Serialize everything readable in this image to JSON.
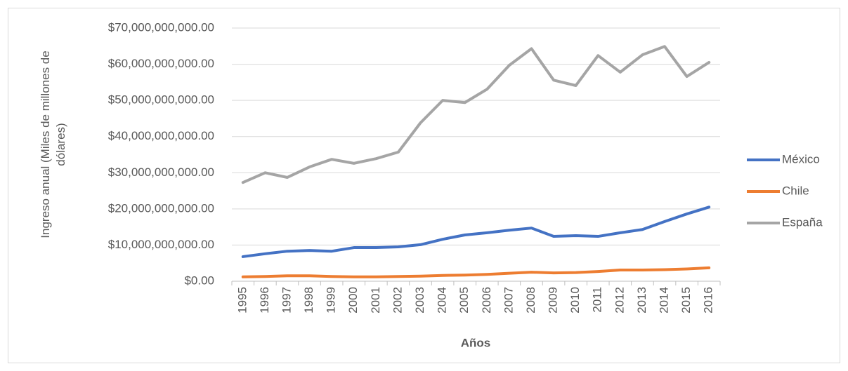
{
  "chart_data": {
    "type": "line",
    "x_label": "Años",
    "y_label": "Ingreso anual (Miles de millones de dólares)",
    "categories": [
      "1995",
      "1996",
      "1997",
      "1998",
      "1999",
      "2000",
      "2001",
      "2002",
      "2003",
      "2004",
      "2005",
      "2006",
      "2007",
      "2008",
      "2009",
      "2010",
      "2011",
      "2012",
      "2013",
      "2014",
      "2015",
      "2016"
    ],
    "series": [
      {
        "name": "México",
        "color": "#4472c4",
        "values": [
          6800000000,
          7600000000,
          8300000000,
          8500000000,
          8300000000,
          9300000000,
          9300000000,
          9500000000,
          10100000000,
          11600000000,
          12800000000,
          13400000000,
          14100000000,
          14700000000,
          12400000000,
          12600000000,
          12400000000,
          13400000000,
          14300000000,
          16500000000,
          18600000000,
          20500000000
        ]
      },
      {
        "name": "Chile",
        "color": "#ed7d31",
        "values": [
          1200000000,
          1300000000,
          1500000000,
          1500000000,
          1300000000,
          1200000000,
          1200000000,
          1300000000,
          1400000000,
          1600000000,
          1700000000,
          1900000000,
          2200000000,
          2500000000,
          2300000000,
          2400000000,
          2700000000,
          3100000000,
          3100000000,
          3200000000,
          3400000000,
          3700000000
        ]
      },
      {
        "name": "España",
        "color": "#a5a5a5",
        "values": [
          27300000000,
          30000000000,
          28700000000,
          31600000000,
          33700000000,
          32600000000,
          33900000000,
          35700000000,
          43800000000,
          50000000000,
          49400000000,
          53100000000,
          59700000000,
          64300000000,
          55600000000,
          54100000000,
          62400000000,
          57800000000,
          62600000000,
          64900000000,
          56600000000,
          60500000000
        ]
      }
    ],
    "ylim": [
      0,
      70000000000
    ],
    "yticks": [
      {
        "value": 0,
        "label": "$0.00"
      },
      {
        "value": 10000000000,
        "label": "$10,000,000,000.00"
      },
      {
        "value": 20000000000,
        "label": "$20,000,000,000.00"
      },
      {
        "value": 30000000000,
        "label": "$30,000,000,000.00"
      },
      {
        "value": 40000000000,
        "label": "$40,000,000,000.00"
      },
      {
        "value": 50000000000,
        "label": "$50,000,000,000.00"
      },
      {
        "value": 60000000000,
        "label": "$60,000,000,000.00"
      },
      {
        "value": 70000000000,
        "label": "$70,000,000,000.00"
      }
    ],
    "grid": true,
    "legend": "right"
  }
}
